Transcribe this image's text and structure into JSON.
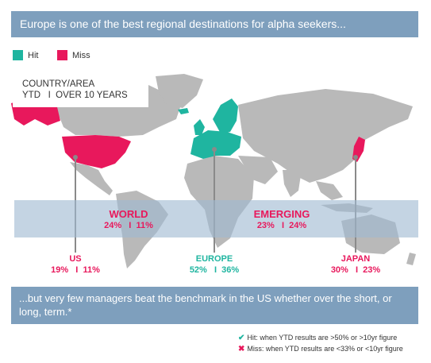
{
  "header": {
    "title": "Europe is one of the best regional destinations for alpha seekers..."
  },
  "legend": {
    "items": [
      {
        "label": "Hit",
        "color": "#1fb5a0"
      },
      {
        "label": "Miss",
        "color": "#e8185c"
      }
    ]
  },
  "info_box": {
    "line1": "COUNTRY/AREA",
    "line2": "YTD   I  OVER 10 YEARS"
  },
  "regions": {
    "world": {
      "name": "WORLD",
      "values": "24%   I  11%",
      "color": "#e8185c"
    },
    "emerging": {
      "name": "EMERGING",
      "values": "23%   I  24%",
      "color": "#e8185c"
    },
    "us": {
      "name": "US",
      "values": "19%   I  11%",
      "color": "#e8185c"
    },
    "europe": {
      "name": "EUROPE",
      "values": "52%   I  36%",
      "color": "#1fb5a0"
    },
    "japan": {
      "name": "JAPAN",
      "values": "30%   I  23%",
      "color": "#e8185c"
    }
  },
  "footer": {
    "text": "...but very few managers beat the benchmark in the US whether over the short, or long, term.*"
  },
  "key": {
    "hit": {
      "icon": "check-icon",
      "text": "Hit: when YTD results are >50% or >10yr figure",
      "color": "#1fb5a0"
    },
    "miss": {
      "icon": "cross-icon",
      "text": "Miss: when YTD results are <33% or <10yr figure",
      "color": "#e8185c"
    }
  },
  "colors": {
    "land": "#b9b9b9",
    "banner": "#7e9fbd",
    "band": "#a0bad2"
  }
}
